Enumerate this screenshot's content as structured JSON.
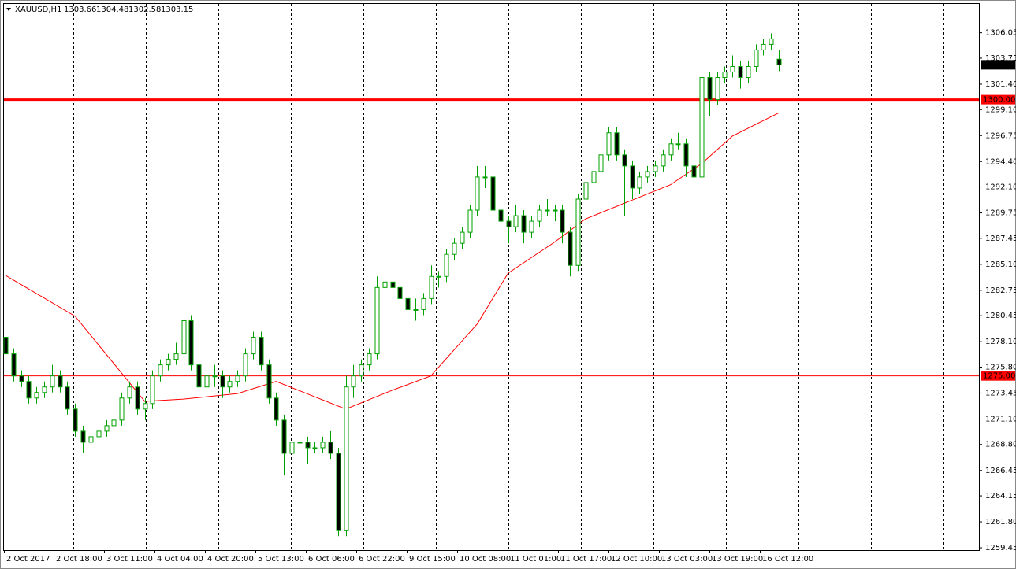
{
  "chart_data": {
    "type": "candlestick",
    "symbol": "XAUUSD,H1",
    "categories": [
      "2 Oct 2017",
      "2 Oct 18:00",
      "3 Oct 11:00",
      "4 Oct 04:00",
      "4 Oct 20:00",
      "5 Oct 13:00",
      "6 Oct 06:00",
      "6 Oct 22:00",
      "9 Oct 15:00",
      "10 Oct 08:00",
      "11 Oct 01:00",
      "11 Oct 17:00",
      "12 Oct 10:00",
      "13 Oct 03:00",
      "13 Oct 19:00",
      "16 Oct 12:00"
    ],
    "ylim": [
      1259.24,
      1308.66
    ],
    "yticks": [
      1306.05,
      1303.75,
      {
        "value": 1301.4,
        "label": "1301.40"
      },
      {
        "value": 1299.1,
        "label": "1299.10"
      },
      1296.75,
      {
        "value": 1294.4,
        "label": "1294.40"
      },
      {
        "value": 1292.1,
        "label": "1292.10"
      },
      1289.75,
      1287.45,
      {
        "value": 1285.1,
        "label": "1285.10"
      },
      1282.75,
      1280.45,
      {
        "value": 1278.1,
        "label": "1278.10"
      },
      {
        "value": 1275.8,
        "label": "1275.80"
      },
      1273.45,
      {
        "value": 1271.1,
        "label": "1271.10"
      },
      {
        "value": 1268.8,
        "label": "1268.80"
      },
      1266.45,
      1264.15,
      {
        "value": 1261.8,
        "label": "1261.80"
      },
      1259.45
    ],
    "up_color": "#ffffff",
    "down_color": "#000000",
    "wick_color": "#00a000",
    "candles": [
      [
        1278.5,
        1279,
        1276.5,
        1277
      ],
      [
        1277,
        1277.5,
        1274.5,
        1275
      ],
      [
        1275,
        1275.5,
        1274,
        1274.5
      ],
      [
        1274.5,
        1275,
        1272.5,
        1273
      ],
      [
        1273,
        1274,
        1272.5,
        1273.5
      ],
      [
        1273.5,
        1274.5,
        1273,
        1274
      ],
      [
        1274,
        1276,
        1273.5,
        1275
      ],
      [
        1275,
        1275.5,
        1273.5,
        1274
      ],
      [
        1274,
        1274.5,
        1271.5,
        1272
      ],
      [
        1272,
        1272.5,
        1269.5,
        1270
      ],
      [
        1270,
        1270.5,
        1268,
        1269
      ],
      [
        1269,
        1270,
        1268.5,
        1269.5
      ],
      [
        1269.5,
        1270.5,
        1269,
        1270
      ],
      [
        1270,
        1271,
        1269.5,
        1270.5
      ],
      [
        1270.5,
        1271.5,
        1270,
        1271
      ],
      [
        1271,
        1273.5,
        1270.5,
        1273
      ],
      [
        1273,
        1274.5,
        1272.5,
        1274
      ],
      [
        1274,
        1274.5,
        1271.5,
        1272
      ],
      [
        1272,
        1273,
        1271,
        1272.5
      ],
      [
        1272.5,
        1275.5,
        1272,
        1275
      ],
      [
        1275,
        1276.5,
        1274.5,
        1276
      ],
      [
        1276,
        1277,
        1275.5,
        1276.5
      ],
      [
        1276.5,
        1278,
        1276,
        1277
      ],
      [
        1277,
        1281.5,
        1276.5,
        1280
      ],
      [
        1280,
        1280.5,
        1275.5,
        1276
      ],
      [
        1276,
        1276.5,
        1271,
        1274
      ],
      [
        1274,
        1275.5,
        1273.5,
        1275
      ],
      [
        1275,
        1276,
        1274,
        1275
      ],
      [
        1275,
        1275.5,
        1273,
        1274
      ],
      [
        1274,
        1275,
        1273.5,
        1274.5
      ],
      [
        1274.5,
        1275.5,
        1274,
        1275
      ],
      [
        1275,
        1277.5,
        1274.5,
        1277
      ],
      [
        1277,
        1279,
        1276.5,
        1278.5
      ],
      [
        1278.5,
        1279,
        1275.5,
        1276
      ],
      [
        1276,
        1276.5,
        1272.5,
        1273
      ],
      [
        1273,
        1273.5,
        1270.5,
        1271
      ],
      [
        1271,
        1271.5,
        1266,
        1268
      ],
      [
        1268,
        1269.5,
        1267.5,
        1269
      ],
      [
        1269,
        1269.5,
        1268,
        1269
      ],
      [
        1269,
        1269.5,
        1267,
        1268.5
      ],
      [
        1268.5,
        1269,
        1268,
        1268.5
      ],
      [
        1268.5,
        1269.5,
        1268,
        1269
      ],
      [
        1269,
        1270,
        1267.5,
        1268
      ],
      [
        1268,
        1268.5,
        1260.5,
        1261
      ],
      [
        1261,
        1275,
        1260.5,
        1274
      ],
      [
        1274,
        1276,
        1273,
        1275
      ],
      [
        1275,
        1276.5,
        1274.5,
        1276
      ],
      [
        1276,
        1277.5,
        1275.5,
        1277
      ],
      [
        1277,
        1284,
        1276.5,
        1283
      ],
      [
        1283,
        1285,
        1282,
        1283.5
      ],
      [
        1283.5,
        1284,
        1281,
        1283
      ],
      [
        1283,
        1283.5,
        1280.5,
        1282
      ],
      [
        1282,
        1282.5,
        1279.5,
        1281
      ],
      [
        1281,
        1282,
        1280,
        1281
      ],
      [
        1281,
        1282.5,
        1280.5,
        1282
      ],
      [
        1282,
        1285,
        1281.5,
        1284
      ],
      [
        1284,
        1284.5,
        1283,
        1284
      ],
      [
        1284,
        1286.5,
        1283.5,
        1286
      ],
      [
        1286,
        1287.5,
        1285.5,
        1287
      ],
      [
        1287,
        1288.5,
        1286.5,
        1288
      ],
      [
        1288,
        1290.5,
        1287.5,
        1290
      ],
      [
        1290,
        1294,
        1289.5,
        1293
      ],
      [
        1293,
        1294,
        1292,
        1293
      ],
      [
        1293,
        1293.5,
        1289.5,
        1290
      ],
      [
        1290,
        1290.5,
        1288,
        1289
      ],
      [
        1289,
        1289.5,
        1287,
        1288.5
      ],
      [
        1288.5,
        1290.5,
        1288,
        1289.5
      ],
      [
        1289.5,
        1290,
        1287,
        1288
      ],
      [
        1288,
        1289.5,
        1287.5,
        1289
      ],
      [
        1289,
        1290.5,
        1288.5,
        1290
      ],
      [
        1290,
        1291,
        1289.5,
        1290
      ],
      [
        1290,
        1290.5,
        1289,
        1290
      ],
      [
        1290,
        1290.5,
        1287,
        1288
      ],
      [
        1288,
        1288.5,
        1284,
        1285
      ],
      [
        1285,
        1291.5,
        1284.5,
        1291
      ],
      [
        1291,
        1293,
        1290.5,
        1292.5
      ],
      [
        1292.5,
        1294,
        1292,
        1293.5
      ],
      [
        1293.5,
        1295.5,
        1293,
        1295
      ],
      [
        1295,
        1297.5,
        1294.5,
        1297
      ],
      [
        1297,
        1297.5,
        1294.5,
        1295
      ],
      [
        1295,
        1295.5,
        1289.5,
        1294
      ],
      [
        1294,
        1294.5,
        1291,
        1292
      ],
      [
        1292,
        1293.5,
        1291.5,
        1293
      ],
      [
        1293,
        1294,
        1292.5,
        1293.5
      ],
      [
        1293.5,
        1294.5,
        1293,
        1294
      ],
      [
        1294,
        1295.5,
        1293.5,
        1295
      ],
      [
        1295,
        1296.5,
        1294.5,
        1296
      ],
      [
        1296,
        1297,
        1295.5,
        1296
      ],
      [
        1296,
        1296.5,
        1293,
        1294
      ],
      [
        1294,
        1294.5,
        1290.5,
        1293
      ],
      [
        1293,
        1302.5,
        1292.5,
        1302
      ],
      [
        1302,
        1302.5,
        1298.5,
        1300
      ],
      [
        1300,
        1302.5,
        1299.5,
        1302
      ],
      [
        1302,
        1303,
        1301.5,
        1302.5
      ],
      [
        1302.5,
        1304,
        1302,
        1303
      ],
      [
        1303,
        1303.5,
        1301,
        1302
      ],
      [
        1302,
        1303.5,
        1301.5,
        1303
      ],
      [
        1303,
        1305,
        1302.5,
        1304.5
      ],
      [
        1304.5,
        1305.5,
        1304,
        1305
      ],
      [
        1305,
        1306,
        1304.5,
        1305.5
      ],
      [
        1303.66,
        1304.48,
        1302.58,
        1303.15
      ]
    ],
    "ma": {
      "color": "#ff0000",
      "x": [
        0,
        9,
        18,
        23,
        30,
        35,
        44,
        50,
        55,
        61,
        65,
        71,
        75,
        81,
        86,
        90,
        94,
        100
      ],
      "values": [
        1284.1,
        1280.4,
        1272.7,
        1272.9,
        1273.4,
        1274.5,
        1272,
        1273.7,
        1275,
        1279.7,
        1284.3,
        1287.1,
        1289.2,
        1290.9,
        1292.3,
        1294.2,
        1296.7,
        1298.8
      ]
    },
    "levels": [
      {
        "value": 1300,
        "label": "1300.00",
        "color": "#ff0000",
        "width": 3
      },
      {
        "value": 1275,
        "label": "1275.00",
        "color": "#ff0000",
        "width": 1
      }
    ]
  }
}
